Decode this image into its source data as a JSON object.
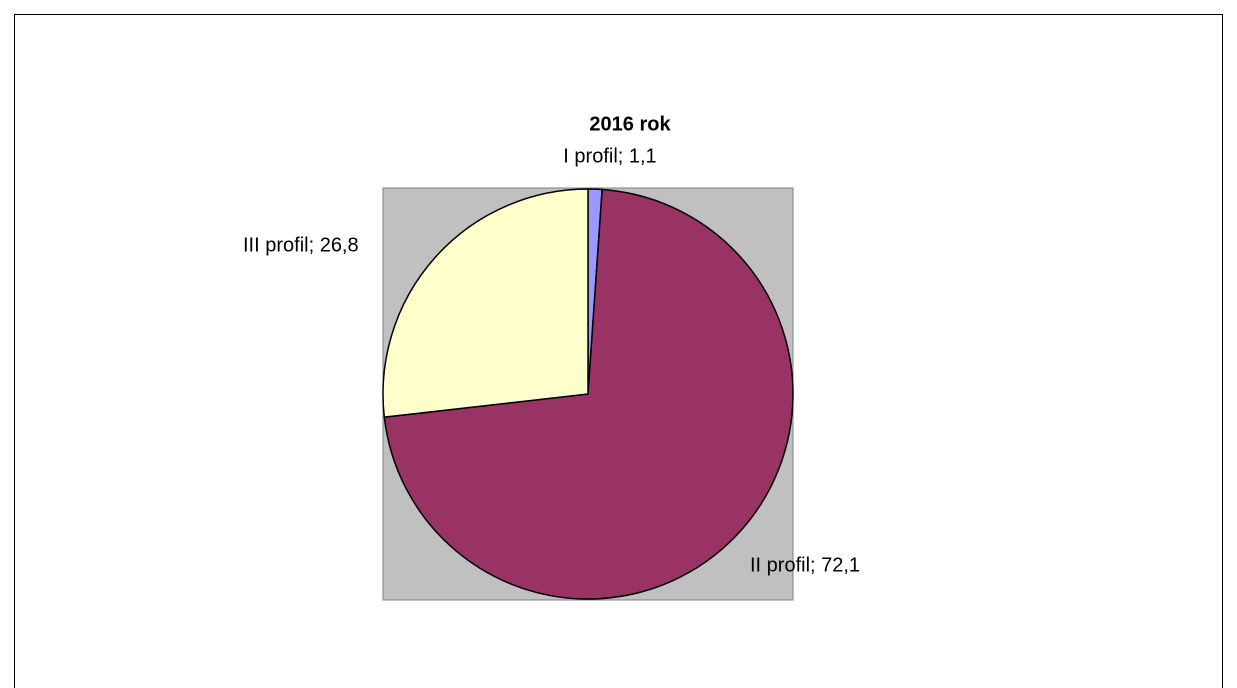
{
  "chart_data": {
    "type": "pie",
    "title": "2016 rok",
    "categories": [
      "I profil",
      "II profil",
      "III profil"
    ],
    "values": [
      1.1,
      72.1,
      26.8
    ],
    "value_labels": [
      "I profil; 1,1",
      "II profil; 72,1",
      "III profil; 26,8"
    ],
    "colors": [
      "#9999ff",
      "#993366",
      "#ffffcc"
    ],
    "plot_background": "#c0c0c0"
  }
}
